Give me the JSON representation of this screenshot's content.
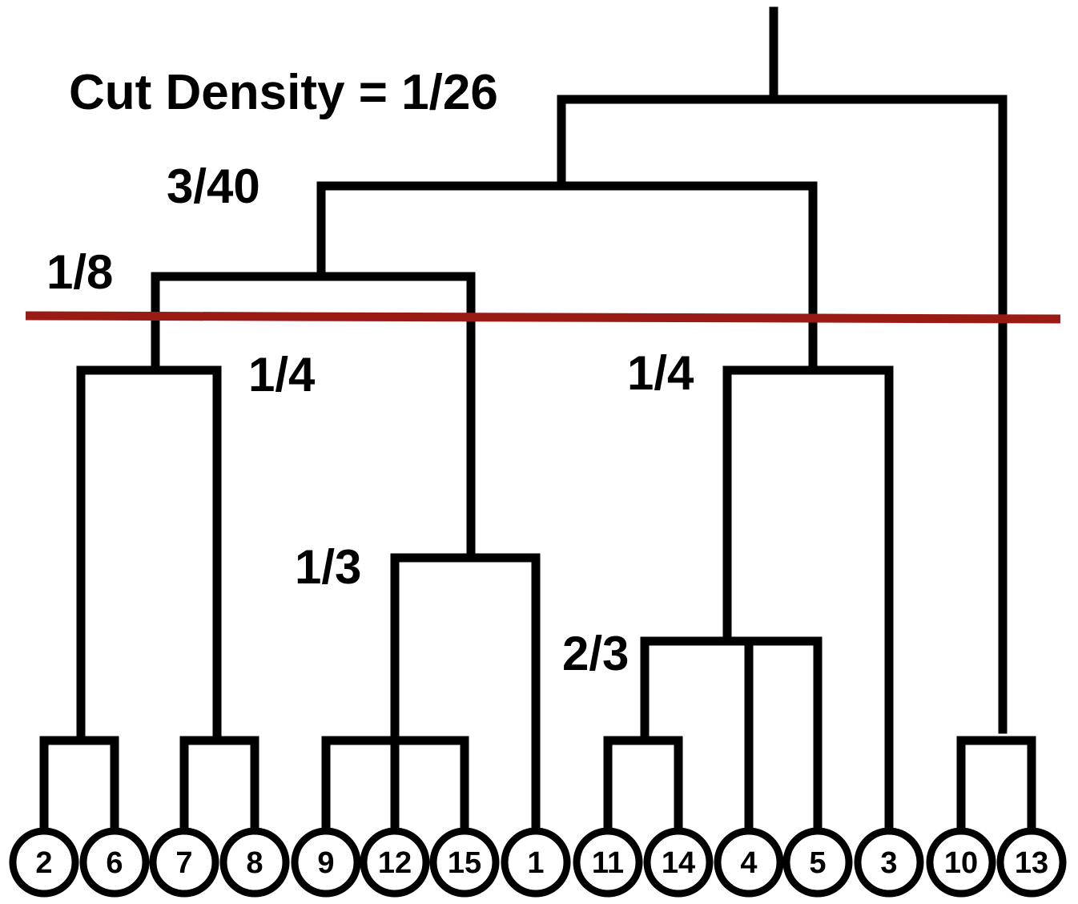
{
  "title": "Cut Density = 1/26",
  "colors": {
    "cut_line": "#9a1a14",
    "stroke": "#000000"
  },
  "node_labels": [
    {
      "id": "l-3-40",
      "text": "3/40"
    },
    {
      "id": "l-1-8",
      "text": "1/8"
    },
    {
      "id": "l-1-4-left",
      "text": "1/4"
    },
    {
      "id": "l-1-4-right",
      "text": "1/4"
    },
    {
      "id": "l-1-3",
      "text": "1/3"
    },
    {
      "id": "l-2-3",
      "text": "2/3"
    }
  ],
  "leaves": [
    "2",
    "6",
    "7",
    "8",
    "9",
    "12",
    "15",
    "1",
    "11",
    "14",
    "4",
    "5",
    "3",
    "10",
    "13"
  ]
}
